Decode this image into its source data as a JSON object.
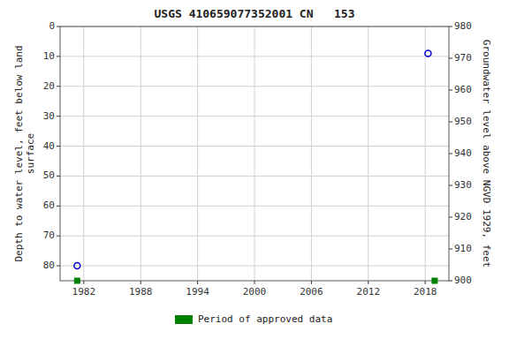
{
  "chart_data": {
    "type": "scatter",
    "title": "USGS 410659077352001 CN   153",
    "x": [
      1981.3,
      2018.3
    ],
    "series": [
      {
        "values": [
          80,
          9
        ],
        "color": "#0000cc",
        "marker": "circle"
      },
      {
        "name": "Period of approved data",
        "x": [
          1981.3,
          2019.0
        ],
        "values": [
          85,
          85
        ],
        "color": "#008000",
        "marker": "square"
      }
    ],
    "xlim": [
      1979.5,
      2020.5
    ],
    "xticks": [
      1982,
      1988,
      1994,
      2000,
      2006,
      2012,
      2018
    ],
    "ylim": [
      85,
      0
    ],
    "yticks": [
      0,
      10,
      20,
      30,
      40,
      50,
      60,
      70,
      80
    ],
    "y2lim": [
      900,
      980
    ],
    "y2ticks": [
      900,
      910,
      920,
      930,
      940,
      950,
      960,
      970,
      980
    ],
    "ylabel": "Depth to water level, feet below land\nsurface",
    "y2label": "Groundwater level above NGVD 1929, feet",
    "grid": true,
    "legend": "bottom"
  }
}
